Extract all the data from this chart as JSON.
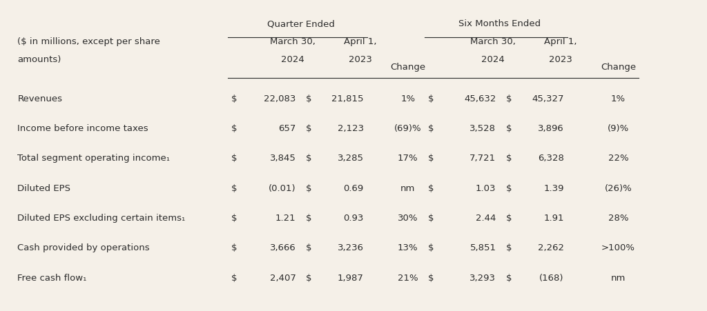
{
  "background_color": "#f5f0e8",
  "title_quarter": "Quarter Ended",
  "title_six_months": "Six Months Ended",
  "rows": [
    [
      "Revenues",
      "$",
      "22,083",
      "$",
      "21,815",
      "1%",
      "$",
      "45,632",
      "$",
      "45,327",
      "1%"
    ],
    [
      "Income before income taxes",
      "$",
      "657",
      "$",
      "2,123",
      "(69)%",
      "$",
      "3,528",
      "$",
      "3,896",
      "(9)%"
    ],
    [
      "Total segment operating income₁",
      "$",
      "3,845",
      "$",
      "3,285",
      "17%",
      "$",
      "7,721",
      "$",
      "6,328",
      "22%"
    ],
    [
      "Diluted EPS",
      "$",
      "(0.01)",
      "$",
      "0.69",
      "nm",
      "$",
      "1.03",
      "$",
      "1.39",
      "(26)%"
    ],
    [
      "Diluted EPS excluding certain items₁",
      "$",
      "1.21",
      "$",
      "0.93",
      "30%",
      "$",
      "2.44",
      "$",
      "1.91",
      "28%"
    ],
    [
      "Cash provided by operations",
      "$",
      "3,666",
      "$",
      "3,236",
      "13%",
      "$",
      "5,851",
      "$",
      "2,262",
      ">100%"
    ],
    [
      "Free cash flow₁",
      "$",
      "2,407",
      "$",
      "1,987",
      "21%",
      "$",
      "3,293",
      "$",
      "(168)",
      "nm"
    ]
  ],
  "text_color": "#2c2c2c",
  "line_color": "#2c2c2c",
  "font_size": 9.5
}
